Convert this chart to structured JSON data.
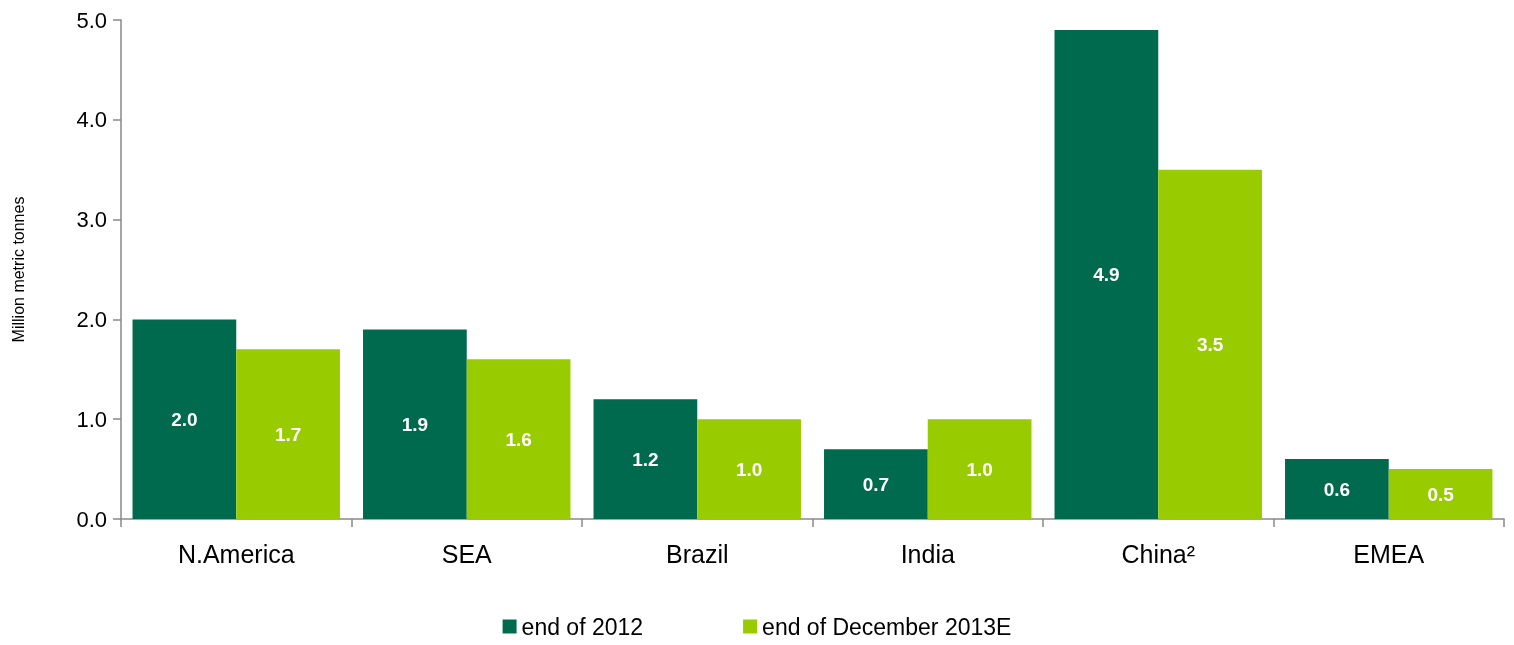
{
  "chart_data": {
    "type": "bar",
    "ylabel": "Million metric tonnes",
    "categories": [
      "N.America",
      "SEA",
      "Brazil",
      "India",
      "China²",
      "EMEA"
    ],
    "series": [
      {
        "name": "end of 2012",
        "color": "#006a4e",
        "values": [
          2.0,
          1.9,
          1.2,
          0.7,
          4.9,
          0.6
        ],
        "value_labels": [
          "2.0",
          "1.9",
          "1.2",
          "0.7",
          "4.9",
          "0.6"
        ]
      },
      {
        "name": "end of December 2013E",
        "color": "#99cc00",
        "values": [
          1.7,
          1.6,
          1.0,
          1.0,
          3.5,
          0.5
        ],
        "value_labels": [
          "1.7",
          "1.6",
          "1.0",
          "1.0",
          "3.5",
          "0.5"
        ]
      }
    ],
    "ylim": [
      0,
      5
    ],
    "yticks": [
      {
        "value": 0,
        "label": "0.0"
      },
      {
        "value": 1,
        "label": "1.0"
      },
      {
        "value": 2,
        "label": "2.0"
      },
      {
        "value": 3,
        "label": "3.0"
      },
      {
        "value": 4,
        "label": "4.0"
      },
      {
        "value": 5,
        "label": "5.0"
      }
    ],
    "grid": false,
    "legend": "bottom"
  }
}
